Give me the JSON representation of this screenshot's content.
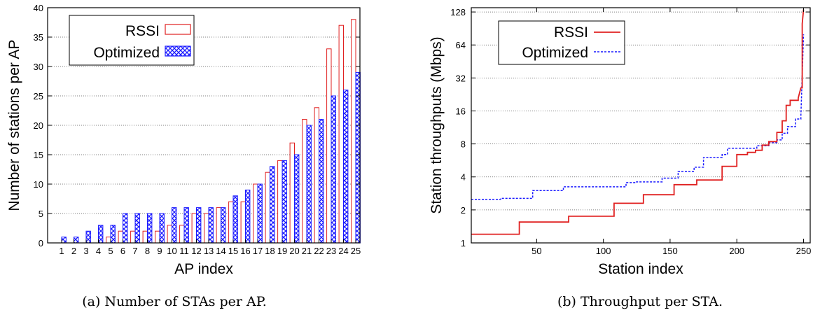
{
  "chart_data": [
    {
      "type": "bar",
      "caption": "(a) Number of STAs per AP.",
      "xlabel": "AP index",
      "ylabel": "Number of stations per AP",
      "ylim": [
        0,
        40
      ],
      "yticks": [
        0,
        5,
        10,
        15,
        20,
        25,
        30,
        35,
        40
      ],
      "grid": "horizontal dotted",
      "legend_position": "top-left",
      "categories": [
        "1",
        "2",
        "3",
        "4",
        "5",
        "6",
        "7",
        "8",
        "9",
        "10",
        "11",
        "12",
        "13",
        "14",
        "15",
        "16",
        "17",
        "18",
        "19",
        "20",
        "21",
        "22",
        "23",
        "24",
        "25"
      ],
      "series": [
        {
          "name": "RSSI",
          "style": "hollow",
          "color": "#e02020",
          "values": [
            0,
            0,
            0,
            0,
            1,
            2,
            2,
            2,
            2,
            3,
            3,
            5,
            5,
            6,
            7,
            7,
            10,
            12,
            14,
            17,
            21,
            23,
            33,
            37,
            38
          ]
        },
        {
          "name": "Optimized",
          "style": "crosshatch",
          "color": "#1a1aff",
          "values": [
            1,
            1,
            2,
            3,
            3,
            5,
            5,
            5,
            5,
            6,
            6,
            6,
            6,
            6,
            8,
            9,
            10,
            13,
            14,
            15,
            20,
            21,
            25,
            26,
            29
          ]
        }
      ]
    },
    {
      "type": "line",
      "caption": "(b) Throughput per STA.",
      "xlabel": "Station index",
      "ylabel": "Station throughputs (Mbps)",
      "xlim": [
        1,
        255
      ],
      "xticks": [
        50,
        100,
        150,
        200,
        250
      ],
      "ylim": [
        1,
        140
      ],
      "yscale": "log2",
      "yticks": [
        1,
        2,
        4,
        8,
        16,
        32,
        64,
        128
      ],
      "grid": "horizontal dotted",
      "legend_position": "top-left",
      "series": [
        {
          "name": "RSSI",
          "style": "solid",
          "color": "#e02020",
          "x": [
            1,
            37,
            37,
            74,
            74,
            108,
            108,
            130,
            130,
            153,
            153,
            170,
            170,
            189,
            189,
            200,
            200,
            208,
            208,
            214,
            214,
            219,
            219,
            224,
            224,
            230,
            230,
            234,
            234,
            237,
            237,
            240,
            240,
            246,
            246,
            248,
            249,
            249,
            250
          ],
          "y": [
            1.2,
            1.2,
            1.55,
            1.55,
            1.75,
            1.75,
            2.3,
            2.3,
            2.75,
            2.75,
            3.4,
            3.4,
            3.75,
            3.75,
            5.0,
            5.0,
            6.4,
            6.4,
            6.7,
            6.7,
            7.0,
            7.0,
            7.8,
            7.8,
            8.4,
            8.4,
            10.2,
            10.2,
            13.0,
            13.0,
            18.0,
            18.0,
            20.0,
            20.0,
            21.0,
            26.0,
            26.0,
            100,
            135
          ]
        },
        {
          "name": "Optimized",
          "style": "dashed",
          "color": "#1a1aff",
          "x": [
            1,
            23,
            23,
            47,
            47,
            70,
            70,
            117,
            117,
            124,
            124,
            144,
            144,
            156,
            156,
            168,
            168,
            175,
            175,
            189,
            189,
            193,
            193,
            215,
            215,
            224,
            224,
            230,
            230,
            234,
            234,
            238,
            238,
            244,
            244,
            248,
            248,
            250
          ],
          "y": [
            2.5,
            2.5,
            2.55,
            2.55,
            3.0,
            3.0,
            3.25,
            3.25,
            3.55,
            3.55,
            3.6,
            3.6,
            3.9,
            3.9,
            4.5,
            4.5,
            4.9,
            4.9,
            6.0,
            6.0,
            6.4,
            6.4,
            7.3,
            7.3,
            7.7,
            7.7,
            8.2,
            8.2,
            8.7,
            8.7,
            10.0,
            10.0,
            11.5,
            11.5,
            13.5,
            13.5,
            14.5,
            80
          ]
        }
      ]
    }
  ]
}
